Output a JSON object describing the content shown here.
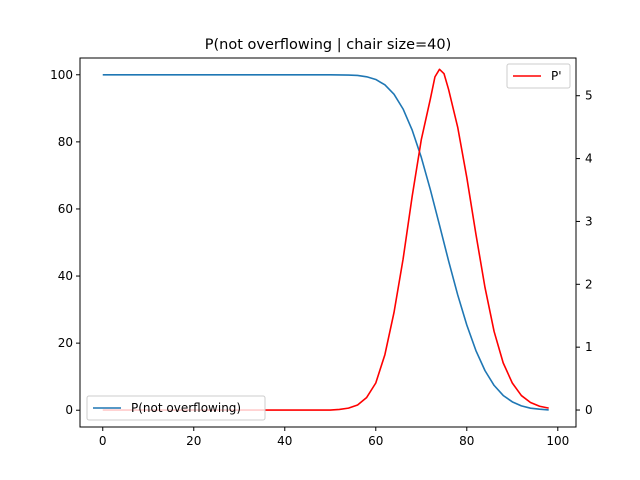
{
  "chart_data": {
    "type": "line",
    "title": "P(not overflowing | chair size=40)",
    "xlabel": "",
    "ylabel_left": "",
    "ylabel_right": "",
    "xlim": [
      -5,
      104
    ],
    "ylim_left": [
      -5,
      105
    ],
    "ylim_right": [
      -0.27,
      5.6
    ],
    "xticks": [
      0,
      20,
      40,
      60,
      80,
      100
    ],
    "yticks_left": [
      0,
      20,
      40,
      60,
      80,
      100
    ],
    "yticks_right": [
      0,
      1,
      2,
      3,
      4,
      5
    ],
    "grid": false,
    "legends": [
      {
        "placement": "lower-left",
        "entries": [
          "P(not overflowing)"
        ]
      },
      {
        "placement": "upper-right",
        "entries": [
          "P'"
        ]
      }
    ],
    "series": [
      {
        "name": "P(not overflowing)",
        "axis": "left",
        "color": "#1f77b4",
        "x": [
          0,
          10,
          20,
          30,
          40,
          50,
          54,
          56,
          58,
          60,
          62,
          64,
          66,
          68,
          70,
          72,
          74,
          76,
          78,
          80,
          82,
          84,
          86,
          88,
          90,
          92,
          94,
          96,
          98
        ],
        "y": [
          100,
          100,
          100,
          100,
          100,
          100,
          99.9,
          99.8,
          99.4,
          98.6,
          97.0,
          94.2,
          89.8,
          83.5,
          75.4,
          65.7,
          55.2,
          44.5,
          34.4,
          25.4,
          17.8,
          11.8,
          7.4,
          4.4,
          2.5,
          1.3,
          0.6,
          0.3,
          0.1
        ]
      },
      {
        "name": "P'",
        "axis": "right",
        "color": "#ff0000",
        "x": [
          0,
          10,
          20,
          30,
          40,
          50,
          52,
          54,
          56,
          58,
          60,
          62,
          64,
          66,
          68,
          70,
          72,
          73,
          74,
          75,
          76,
          78,
          80,
          82,
          84,
          86,
          88,
          90,
          92,
          94,
          96,
          98
        ],
        "y": [
          0,
          0,
          0,
          0,
          0,
          0,
          0.01,
          0.03,
          0.08,
          0.2,
          0.43,
          0.88,
          1.55,
          2.4,
          3.4,
          4.3,
          4.95,
          5.3,
          5.42,
          5.35,
          5.1,
          4.5,
          3.7,
          2.8,
          1.95,
          1.25,
          0.75,
          0.43,
          0.23,
          0.12,
          0.06,
          0.03
        ]
      }
    ]
  }
}
